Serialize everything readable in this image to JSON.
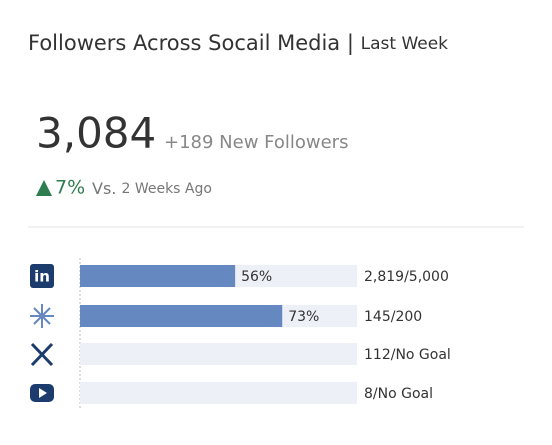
{
  "header": {
    "title": "Followers Across Socail Media",
    "divider": "|",
    "period": "Last Week"
  },
  "summary": {
    "total": "3,084",
    "new": "+189 New Followers",
    "change": "7%",
    "vs": "Vs.",
    "compare": "2 Weeks Ago"
  },
  "chart_data": {
    "type": "bar",
    "categories": [
      null,
      null,
      null,
      null
    ],
    "values": [
      56,
      73,
      null,
      null
    ],
    "value_labels": [
      "56%",
      "73%",
      null,
      null
    ],
    "xlim": [
      0,
      100
    ],
    "color": "#6688c0",
    "goal_labels": [
      "2,819/5,000",
      "145/200",
      "112/No Goal",
      "8/No Goal"
    ]
  }
}
